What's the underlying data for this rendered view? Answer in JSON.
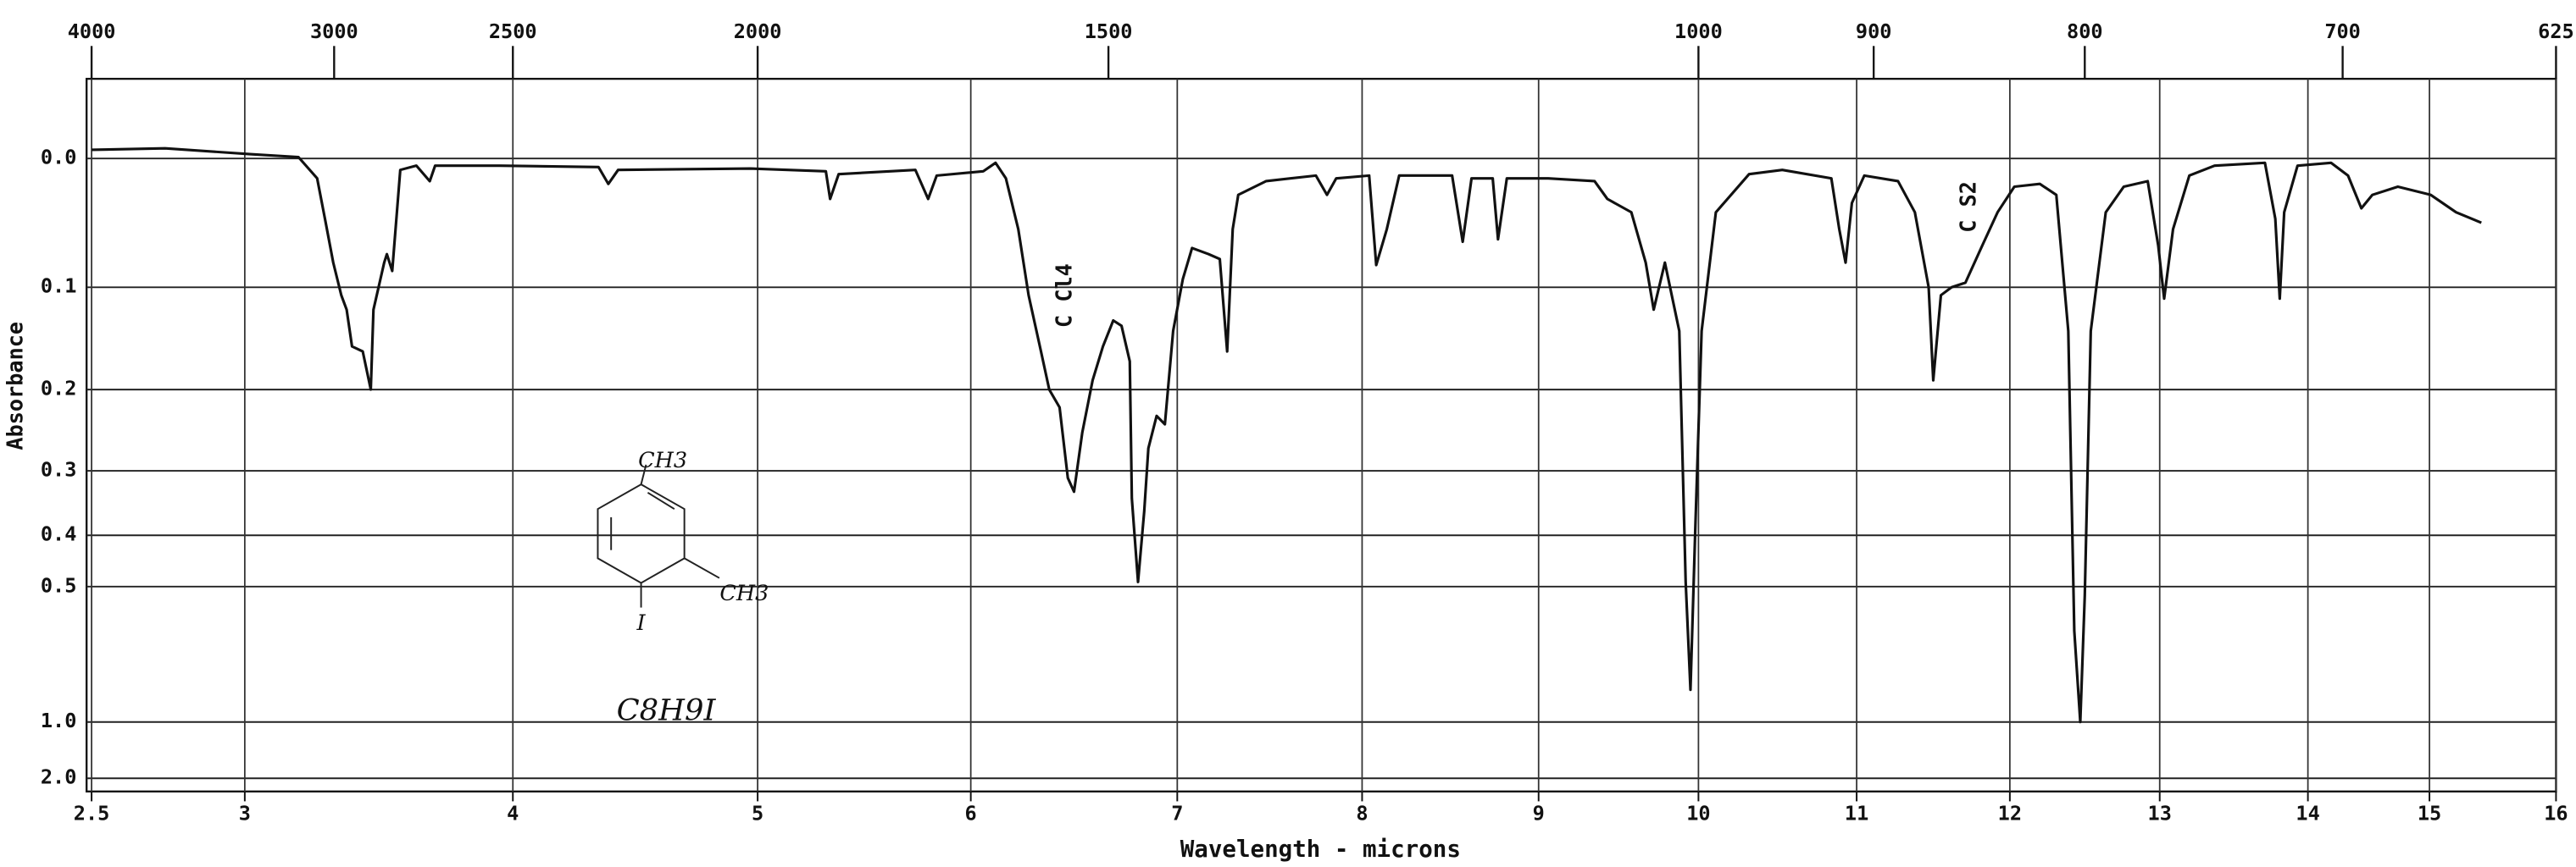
{
  "chart_data": {
    "type": "line",
    "xlabel": "Wavelength - microns",
    "ylabel": "Absorbance",
    "yscale": "transmittance",
    "color": "#111111",
    "grid": true,
    "xlim": [
      2.5,
      16
    ],
    "xticks": [
      2.5,
      3,
      4,
      5,
      6,
      7,
      8,
      9,
      10,
      11,
      12,
      13,
      14,
      15,
      16
    ],
    "x2ticks": [
      4000,
      3000,
      2500,
      2000,
      1500,
      1000,
      900,
      800,
      700,
      625
    ],
    "ylim": [
      -0.05,
      2.0
    ],
    "yticks": [
      {
        "value": 0,
        "label": "0.0"
      },
      0.1,
      0.2,
      0.3,
      0.4,
      0.5,
      {
        "value": 1,
        "label": "1.0"
      },
      {
        "value": 2,
        "label": "2.0"
      }
    ],
    "annotations": [
      "C Cl4",
      "C S2",
      "CH3",
      "CH3",
      "I",
      "C8H9I"
    ],
    "x": [
      2.5,
      2.74,
      3.02,
      3.2,
      3.27,
      3.3,
      3.33,
      3.36,
      3.38,
      3.4,
      3.44,
      3.47,
      3.48,
      3.52,
      3.53,
      3.55,
      3.58,
      3.64,
      3.69,
      3.71,
      3.95,
      4.35,
      4.39,
      4.43,
      4.97,
      5.32,
      5.34,
      5.38,
      5.74,
      5.8,
      5.84,
      6.06,
      6.12,
      6.17,
      6.23,
      6.28,
      6.34,
      6.38,
      6.43,
      6.47,
      6.5,
      6.54,
      6.59,
      6.64,
      6.69,
      6.73,
      6.77,
      6.78,
      6.81,
      6.84,
      6.86,
      6.9,
      6.94,
      6.98,
      7.03,
      7.08,
      7.17,
      7.23,
      7.27,
      7.3,
      7.33,
      7.48,
      7.75,
      7.81,
      7.86,
      8.04,
      8.08,
      8.14,
      8.21,
      8.51,
      8.57,
      8.62,
      8.74,
      8.77,
      8.82,
      9.06,
      9.35,
      9.43,
      9.58,
      9.67,
      9.72,
      9.79,
      9.88,
      9.92,
      9.95,
      9.98,
      10.02,
      10.11,
      10.32,
      10.53,
      10.84,
      10.89,
      10.93,
      10.97,
      11.05,
      11.27,
      11.38,
      11.47,
      11.5,
      11.55,
      11.62,
      11.71,
      11.82,
      11.92,
      12.03,
      12.2,
      12.31,
      12.39,
      12.43,
      12.47,
      12.5,
      12.54,
      12.64,
      12.76,
      12.92,
      12.99,
      13.03,
      13.09,
      13.2,
      13.37,
      13.71,
      13.78,
      13.81,
      13.84,
      13.93,
      14.19,
      14.33,
      14.44,
      14.53,
      14.74,
      15.01,
      15.21,
      15.41
    ],
    "values": [
      -0.006,
      -0.007,
      -0.003,
      -0.001,
      0.014,
      0.045,
      0.079,
      0.107,
      0.12,
      0.155,
      0.16,
      0.2,
      0.12,
      0.079,
      0.072,
      0.086,
      0.008,
      0.005,
      0.016,
      0.005,
      0.005,
      0.006,
      0.018,
      0.008,
      0.007,
      0.009,
      0.029,
      0.011,
      0.008,
      0.029,
      0.012,
      0.009,
      0.003,
      0.014,
      0.052,
      0.107,
      0.16,
      0.2,
      0.22,
      0.31,
      0.33,
      0.25,
      0.19,
      0.155,
      0.13,
      0.135,
      0.17,
      0.34,
      0.49,
      0.36,
      0.27,
      0.23,
      0.24,
      0.14,
      0.093,
      0.067,
      0.072,
      0.076,
      0.16,
      0.052,
      0.026,
      0.016,
      0.012,
      0.026,
      0.014,
      0.012,
      0.081,
      0.052,
      0.012,
      0.012,
      0.062,
      0.014,
      0.014,
      0.06,
      0.014,
      0.014,
      0.016,
      0.029,
      0.039,
      0.079,
      0.12,
      0.079,
      0.14,
      0.49,
      0.82,
      0.39,
      0.14,
      0.039,
      0.011,
      0.008,
      0.014,
      0.052,
      0.079,
      0.032,
      0.012,
      0.016,
      0.039,
      0.1,
      0.19,
      0.107,
      0.1,
      0.096,
      0.065,
      0.039,
      0.02,
      0.018,
      0.026,
      0.14,
      0.61,
      1.0,
      0.52,
      0.14,
      0.039,
      0.02,
      0.016,
      0.065,
      0.11,
      0.052,
      0.012,
      0.005,
      0.003,
      0.044,
      0.11,
      0.039,
      0.005,
      0.003,
      0.012,
      0.036,
      0.026,
      0.02,
      0.026,
      0.039,
      0.047
    ]
  }
}
